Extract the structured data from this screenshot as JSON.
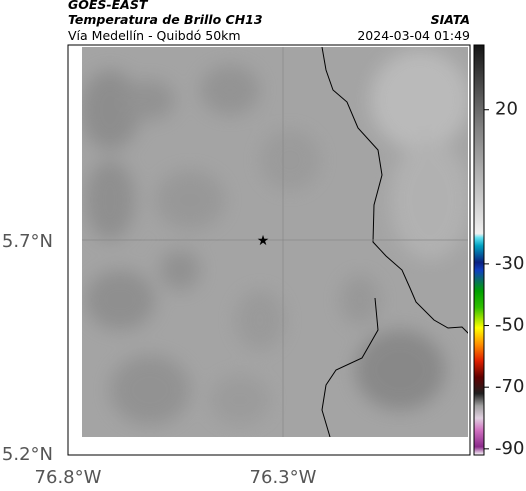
{
  "header": {
    "title": "GOES-EAST",
    "subtitle": "Temperatura de Brillo CH13",
    "location": "Vía Medellín - Quibdó 50km",
    "source": "SIATA",
    "datetime": "2024-03-04 01:49"
  },
  "map": {
    "lat_labels": [
      "5.7°N",
      "5.2°N"
    ],
    "lon_labels": [
      "76.8°W",
      "76.3°W"
    ]
  },
  "colorbar": {
    "lim": [
      -92,
      41
    ],
    "ticks": [
      20,
      -30,
      -50,
      -70,
      -90
    ]
  }
}
